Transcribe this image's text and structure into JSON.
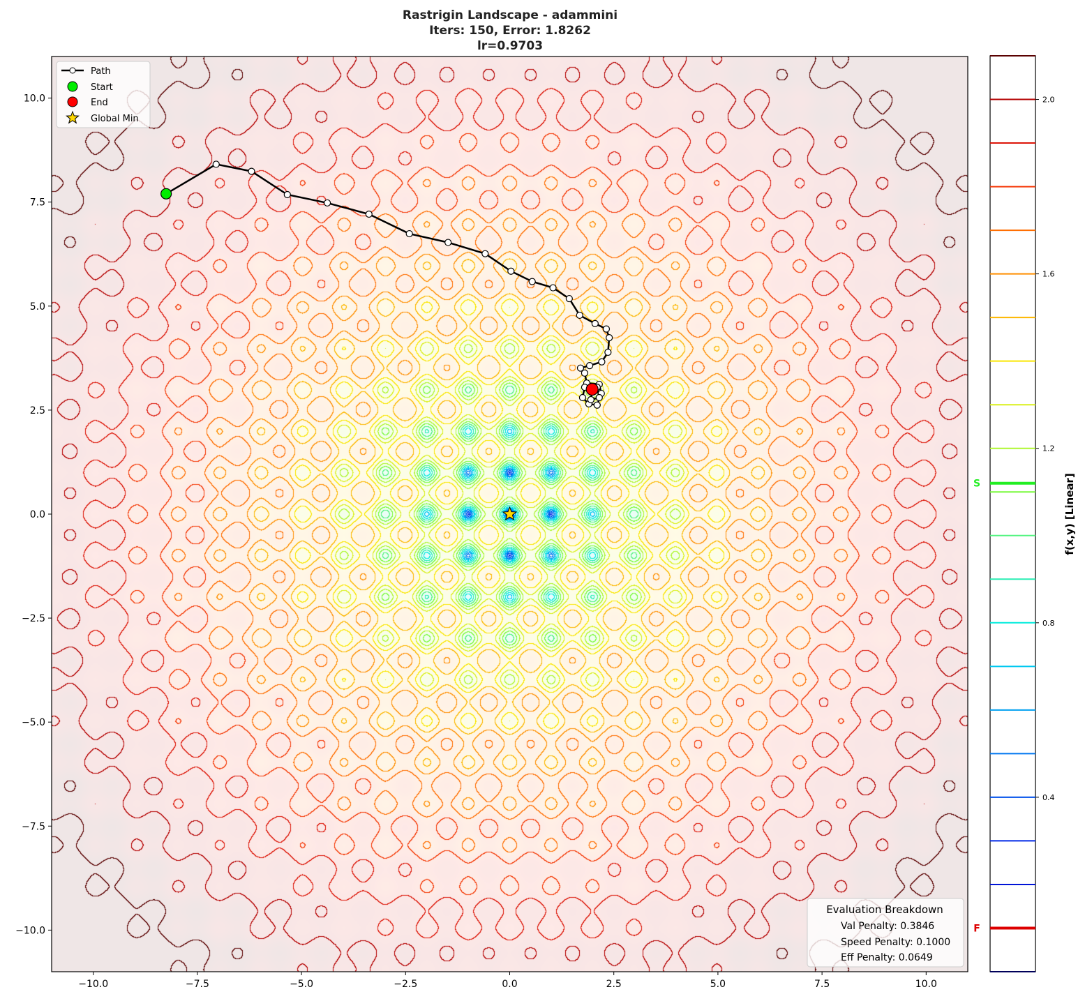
{
  "chart_data": {
    "type": "contour",
    "title_lines": [
      "Rastrigin Landscape - adammini",
      "Iters: 150, Error: 1.8262",
      "lr=0.9703"
    ],
    "xlim": [
      -11,
      11
    ],
    "ylim": [
      -11,
      11
    ],
    "xticks": [
      -10.0,
      -7.5,
      -5.0,
      -2.5,
      0.0,
      2.5,
      5.0,
      7.5,
      10.0
    ],
    "xtick_labels": [
      "−10.0",
      "−7.5",
      "−5.0",
      "−2.5",
      "0.0",
      "2.5",
      "5.0",
      "7.5",
      "10.0"
    ],
    "yticks": [
      10.0,
      7.5,
      5.0,
      2.5,
      0.0,
      -2.5,
      -5.0,
      -7.5,
      -10.0
    ],
    "ytick_labels": [
      "10.0",
      "7.5",
      "5.0",
      "2.5",
      "0.0",
      "−2.5",
      "−5.0",
      "−7.5",
      "−10.0"
    ],
    "grid": false,
    "colorbar": {
      "label": "f(x,y) [Linear]",
      "range": [
        0,
        2.1
      ],
      "level_step": 0.1,
      "ticks": [
        0.4,
        0.8,
        1.2,
        1.6,
        2.0
      ],
      "tick_labels": [
        "0.4",
        "0.8",
        "1.2",
        "1.6",
        "2.0"
      ],
      "markers": [
        {
          "label": "S",
          "value": 1.12,
          "color": "#22ee22"
        },
        {
          "label": "F",
          "value": 0.1,
          "color": "#dd0000"
        }
      ],
      "colormap": "jet"
    },
    "path": {
      "name": "Path",
      "points": [
        [
          -8.25,
          7.7
        ],
        [
          -7.05,
          8.41
        ],
        [
          -6.2,
          8.24
        ],
        [
          -5.34,
          7.68
        ],
        [
          -4.38,
          7.48
        ],
        [
          -3.38,
          7.21
        ],
        [
          -2.41,
          6.74
        ],
        [
          -1.48,
          6.53
        ],
        [
          -0.59,
          6.26
        ],
        [
          0.03,
          5.84
        ],
        [
          0.54,
          5.59
        ],
        [
          1.04,
          5.44
        ],
        [
          1.43,
          5.18
        ],
        [
          1.68,
          4.78
        ],
        [
          2.05,
          4.58
        ],
        [
          2.32,
          4.45
        ],
        [
          2.39,
          4.24
        ],
        [
          2.36,
          3.89
        ],
        [
          2.21,
          3.66
        ],
        [
          1.92,
          3.57
        ],
        [
          1.7,
          3.51
        ],
        [
          1.8,
          3.39
        ],
        [
          1.85,
          3.15
        ],
        [
          2.15,
          3.12
        ],
        [
          2.2,
          2.9
        ],
        [
          2.1,
          2.62
        ],
        [
          1.9,
          2.65
        ],
        [
          1.75,
          2.8
        ],
        [
          1.8,
          3.05
        ],
        [
          2.1,
          3.05
        ],
        [
          2.15,
          2.8
        ],
        [
          1.95,
          2.75
        ],
        [
          1.98,
          3.0
        ]
      ]
    },
    "start": {
      "name": "Start",
      "point": [
        -8.25,
        7.7
      ],
      "color": "#00ee00"
    },
    "end": {
      "name": "End",
      "point": [
        1.98,
        3.0
      ],
      "color": "#ff0000"
    },
    "global_min": {
      "name": "Global Min",
      "point": [
        0,
        0
      ],
      "color": "#ffd700"
    },
    "legend_placement": "upper-left",
    "evaluation": {
      "title": "Evaluation Breakdown",
      "lines": [
        "Val Penalty: 0.3846",
        "Speed Penalty: 0.1000",
        "Eff Penalty: 0.0649"
      ],
      "placement": "lower-right"
    }
  }
}
